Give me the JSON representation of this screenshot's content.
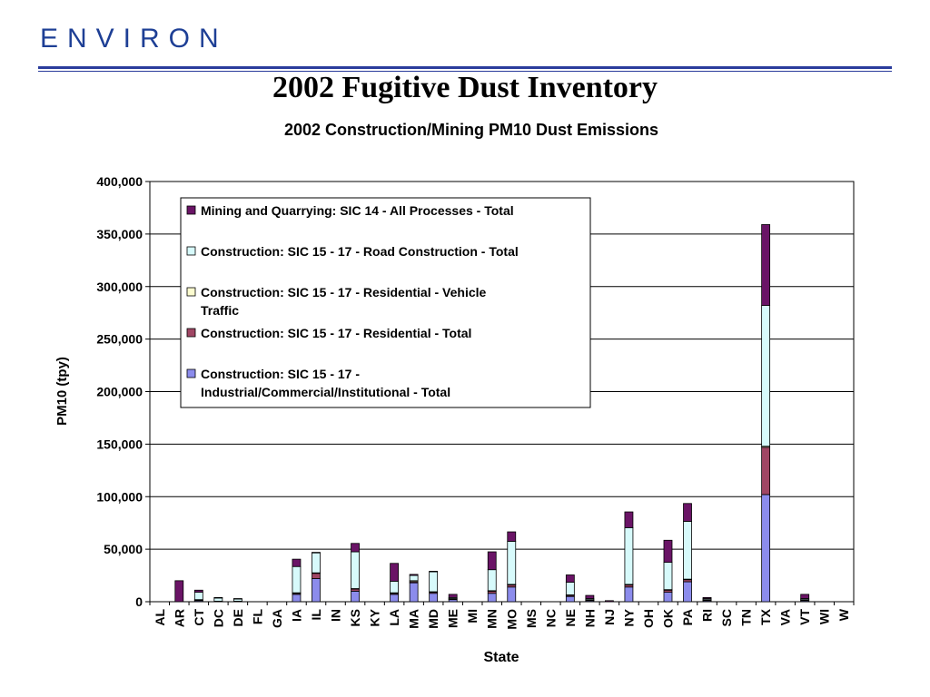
{
  "header": {
    "logo_text": "ENVIRON",
    "slide_title": "2002 Fugitive Dust Inventory"
  },
  "colors": {
    "brand": "#1e3f95",
    "mining": "#6a1466",
    "road": "#d7fafb",
    "res_vehicle": "#fcfcd0",
    "residential": "#a04664",
    "industrial": "#8c8cec"
  },
  "chart_data": {
    "type": "bar",
    "stacked": true,
    "title": "2002 Construction/Mining PM10 Dust Emissions",
    "xlabel": "State",
    "ylabel": "PM10 (tpy)",
    "ylim": [
      0,
      400000
    ],
    "yticks": [
      0,
      50000,
      100000,
      150000,
      200000,
      250000,
      300000,
      350000,
      400000
    ],
    "ytick_labels": [
      "0",
      "50,000",
      "100,000",
      "150,000",
      "200,000",
      "250,000",
      "300,000",
      "350,000",
      "400,000"
    ],
    "grid": true,
    "legend_position": "top-left inside plot",
    "categories": [
      "AL",
      "AR",
      "CT",
      "DC",
      "DE",
      "FL",
      "GA",
      "IA",
      "IL",
      "IN",
      "KS",
      "KY",
      "LA",
      "MA",
      "MD",
      "ME",
      "MI",
      "MN",
      "MO",
      "MS",
      "NC",
      "NE",
      "NH",
      "NJ",
      "NY",
      "OH",
      "OK",
      "PA",
      "RI",
      "SC",
      "TN",
      "TX",
      "VA",
      "VT",
      "WI",
      "W"
    ],
    "series": [
      {
        "name": "Construction: SIC 15 - 17 - Industrial/Commercial/Institutional - Total",
        "color": "#8c8cec",
        "values": [
          0,
          0,
          1000,
          500,
          500,
          0,
          0,
          7000,
          22000,
          0,
          10000,
          0,
          7000,
          18000,
          8000,
          2000,
          0,
          8000,
          14000,
          0,
          0,
          5000,
          1000,
          0,
          14000,
          0,
          9000,
          19000,
          1000,
          0,
          0,
          102000,
          0,
          1000,
          0,
          0
        ]
      },
      {
        "name": "Construction: SIC 15 - 17 - Residential - Total",
        "color": "#a04664",
        "values": [
          0,
          0,
          500,
          0,
          0,
          0,
          0,
          1000,
          5000,
          0,
          2000,
          0,
          1000,
          1000,
          1000,
          500,
          0,
          2000,
          2000,
          0,
          0,
          1000,
          500,
          0,
          2000,
          0,
          2000,
          2000,
          500,
          0,
          0,
          45000,
          0,
          500,
          0,
          0
        ]
      },
      {
        "name": "Construction: SIC 15 - 17 - Residential - Vehicle Traffic",
        "color": "#fcfcd0",
        "values": [
          0,
          0,
          500,
          0,
          0,
          0,
          0,
          500,
          500,
          0,
          500,
          0,
          500,
          1000,
          500,
          500,
          0,
          500,
          500,
          0,
          0,
          500,
          500,
          0,
          500,
          0,
          500,
          500,
          500,
          0,
          0,
          1000,
          0,
          500,
          0,
          0
        ]
      },
      {
        "name": "Construction: SIC 15 - 17 - Road Construction - Total",
        "color": "#d7fafb",
        "values": [
          0,
          0,
          7000,
          3000,
          2000,
          0,
          0,
          25000,
          19000,
          0,
          35000,
          0,
          11000,
          5000,
          19000,
          1000,
          0,
          20000,
          41000,
          0,
          0,
          12000,
          1000,
          0,
          54000,
          0,
          26000,
          55000,
          1000,
          0,
          0,
          134000,
          0,
          1000,
          0,
          0
        ]
      },
      {
        "name": "Mining and Quarrying: SIC 14 - All Processes - Total",
        "color": "#6a1466",
        "values": [
          0,
          20000,
          2000,
          500,
          500,
          0,
          0,
          7000,
          500,
          0,
          8000,
          0,
          17000,
          1000,
          500,
          3000,
          0,
          17000,
          9000,
          0,
          0,
          7000,
          3000,
          1000,
          15000,
          0,
          21000,
          17000,
          1000,
          0,
          0,
          77000,
          0,
          4000,
          0,
          0
        ]
      }
    ],
    "legend_order": [
      4,
      3,
      2,
      1,
      0
    ]
  }
}
